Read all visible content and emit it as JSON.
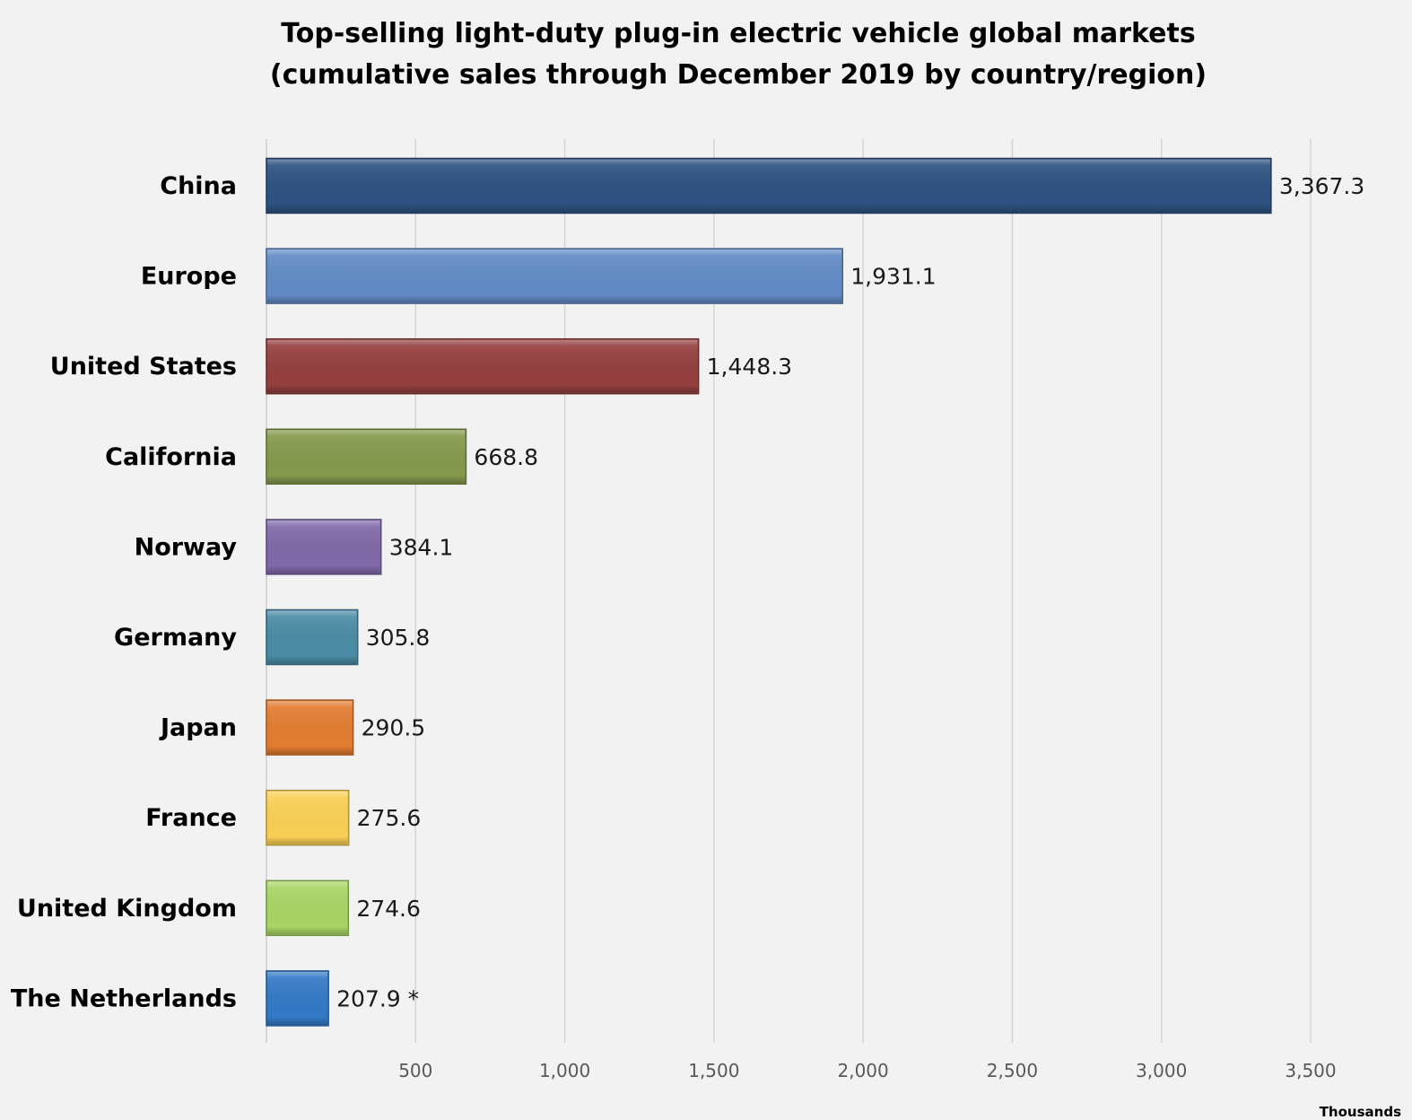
{
  "chart_data": {
    "type": "bar",
    "orientation": "horizontal",
    "title_lines": [
      "Top-selling light-duty plug-in electric vehicle global markets",
      "(cumulative sales through December 2019 by country/region)"
    ],
    "xlabel": "Thousands",
    "ylabel": "",
    "xlim": [
      0,
      3500
    ],
    "xticks": [
      500,
      1000,
      1500,
      2000,
      2500,
      3000,
      3500
    ],
    "xtick_labels": [
      "500",
      "1,000",
      "1,500",
      "2,000",
      "2,500",
      "3,000",
      "3,500"
    ],
    "grid": true,
    "legend": null,
    "categories": [
      "China",
      "Europe",
      "United States",
      "California",
      "Norway",
      "Germany",
      "Japan",
      "France",
      "United Kingdom",
      "The Netherlands"
    ],
    "values": [
      3367.3,
      1931.1,
      1448.3,
      668.8,
      384.1,
      305.8,
      290.5,
      275.6,
      274.6,
      207.9
    ],
    "value_labels": [
      "3,367.3",
      "1,931.1",
      "1,448.3",
      "668.8",
      "384.1",
      "305.8",
      "290.5",
      "275.6",
      "274.6",
      "207.9 *"
    ],
    "colors": [
      "#2e5181",
      "#628bc6",
      "#943f3e",
      "#84994c",
      "#8069a8",
      "#4a8ba5",
      "#e27c31",
      "#f9cf55",
      "#a8d565",
      "#3379c6"
    ]
  }
}
